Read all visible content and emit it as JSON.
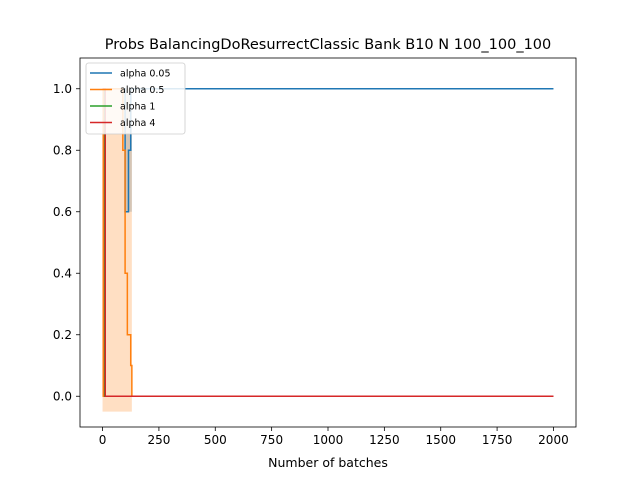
{
  "chart_data": {
    "type": "line",
    "title": "Probs BalancingDoResurrectClassic Bank B10 N 100_100_100",
    "xlabel": "Number of batches",
    "ylabel": "",
    "xlim": [
      -100,
      2100
    ],
    "ylim": [
      -0.1,
      1.1
    ],
    "xticks": [
      0,
      250,
      500,
      750,
      1000,
      1250,
      1500,
      1750,
      2000
    ],
    "yticks": [
      0.0,
      0.2,
      0.4,
      0.6,
      0.8,
      1.0
    ],
    "grid": false,
    "legend": {
      "position": "top-left"
    },
    "series": [
      {
        "name": "alpha 0.05",
        "color": "#1f77b4",
        "x": [
          0,
          5,
          5,
          60,
          80,
          100,
          100,
          115,
          115,
          125,
          125,
          2000
        ],
        "y": [
          0,
          0,
          1.0,
          1.0,
          1.0,
          1.0,
          0.6,
          0.6,
          0.8,
          0.8,
          1.0,
          1.0
        ],
        "band": {
          "x": [
            100,
            130
          ],
          "low": [
            0.6,
            0.6
          ],
          "high": [
            1.0,
            1.0
          ]
        }
      },
      {
        "name": "alpha 0.5",
        "color": "#ff7f0e",
        "x": [
          0,
          3,
          3,
          90,
          90,
          100,
          100,
          110,
          110,
          125,
          125,
          130,
          130,
          2000
        ],
        "y": [
          0,
          0,
          1.0,
          1.0,
          0.8,
          0.8,
          0.4,
          0.4,
          0.2,
          0.2,
          0.1,
          0.1,
          0,
          0
        ],
        "band": {
          "x": [
            0,
            130
          ],
          "low": [
            -0.05,
            -0.05
          ],
          "high": [
            1.0,
            1.0
          ]
        }
      },
      {
        "name": "alpha 1",
        "color": "#2ca02c",
        "x": [
          0,
          10,
          10,
          15,
          15,
          2000
        ],
        "y": [
          1.0,
          1.0,
          0,
          0,
          0,
          0
        ]
      },
      {
        "name": "alpha 4",
        "color": "#d62728",
        "x": [
          0,
          12,
          12,
          2000
        ],
        "y": [
          1.0,
          1.0,
          0,
          0
        ]
      }
    ]
  }
}
